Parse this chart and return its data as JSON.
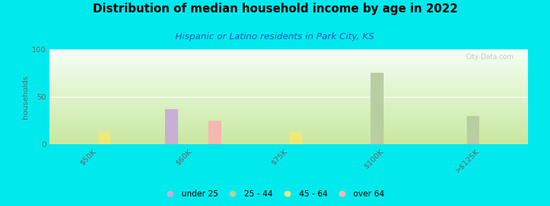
{
  "title": "Distribution of median household income by age in 2022",
  "subtitle": "Hispanic or Latino residents in Park City, KS",
  "ylabel": "households",
  "xlabel": "",
  "categories": [
    "$50K",
    "$60K",
    "$75K",
    "$100K",
    ">$125K"
  ],
  "age_groups": [
    "under 25",
    "25 - 44",
    "45 - 64",
    "over 64"
  ],
  "colors": {
    "under 25": "#c9aed6",
    "25 - 44": "#b8cea0",
    "45 - 64": "#ede87a",
    "over 64": "#f4b8b0"
  },
  "data": {
    "under 25": [
      0,
      37,
      0,
      0,
      0
    ],
    "25 - 44": [
      0,
      0,
      0,
      75,
      30
    ],
    "45 - 64": [
      13,
      0,
      13,
      0,
      0
    ],
    "over 64": [
      0,
      25,
      0,
      0,
      0
    ]
  },
  "ylim": [
    0,
    100
  ],
  "yticks": [
    0,
    50,
    100
  ],
  "bg_top": "#f5fff5",
  "bg_bottom": "#c8e8a0",
  "outer_background": "#00eaee",
  "title_fontsize": 12,
  "subtitle_fontsize": 9.5,
  "watermark": "City-Data.com"
}
